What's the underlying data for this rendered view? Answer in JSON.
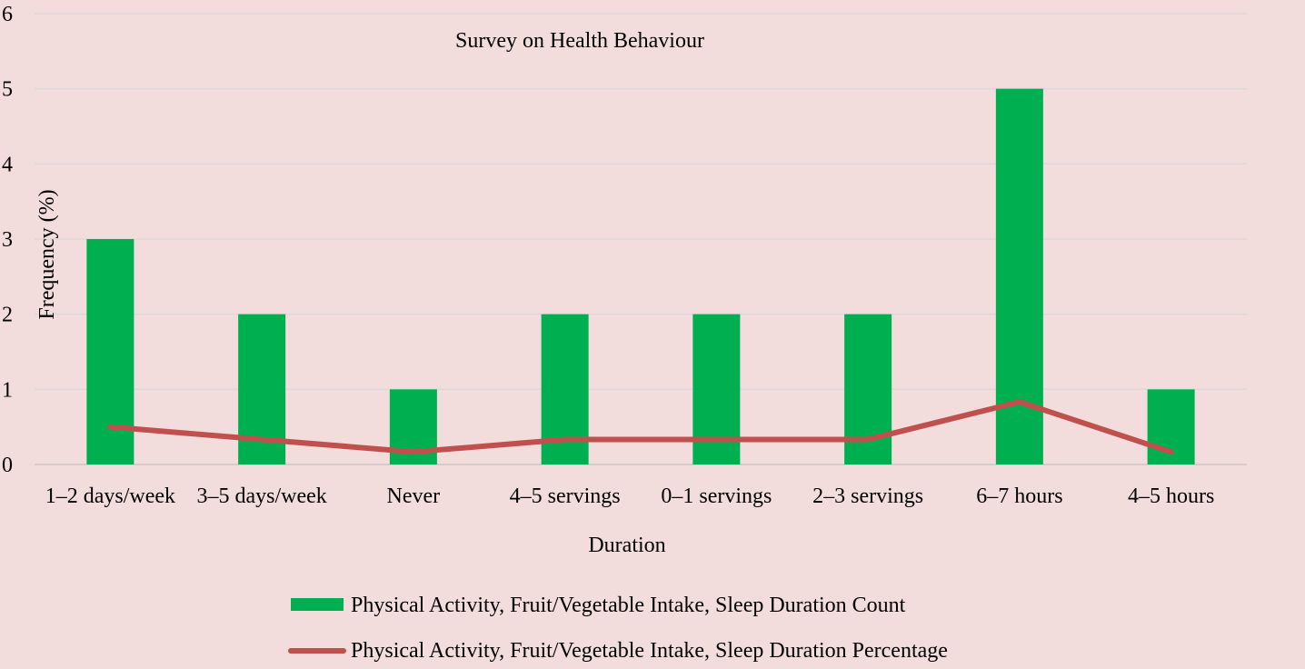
{
  "chart_data": {
    "type": "bar",
    "title": "Survey on Health Behaviour",
    "xlabel": "Duration",
    "ylabel": "Frequency (%)",
    "ylim": [
      0,
      6
    ],
    "yticks": [
      0,
      1,
      2,
      3,
      4,
      5,
      6
    ],
    "grid": true,
    "legend_position": "bottom",
    "categories": [
      "1–2 days/week",
      "3–5 days/week",
      "Never",
      "4–5 servings",
      "0–1 servings",
      "2–3 servings",
      "6–7 hours",
      "4–5 hours"
    ],
    "series": [
      {
        "name": "Physical Activity, Fruit/Vegetable Intake, Sleep Duration Count",
        "type": "bar",
        "color": "#00b050",
        "values": [
          3,
          2,
          1,
          2,
          2,
          2,
          5,
          1
        ]
      },
      {
        "name": "Physical Activity, Fruit/Vegetable Intake, Sleep Duration Percentage",
        "type": "line",
        "color": "#c0504d",
        "values": [
          0.5,
          0.333,
          0.167,
          0.333,
          0.333,
          0.333,
          0.833,
          0.167
        ]
      }
    ]
  }
}
